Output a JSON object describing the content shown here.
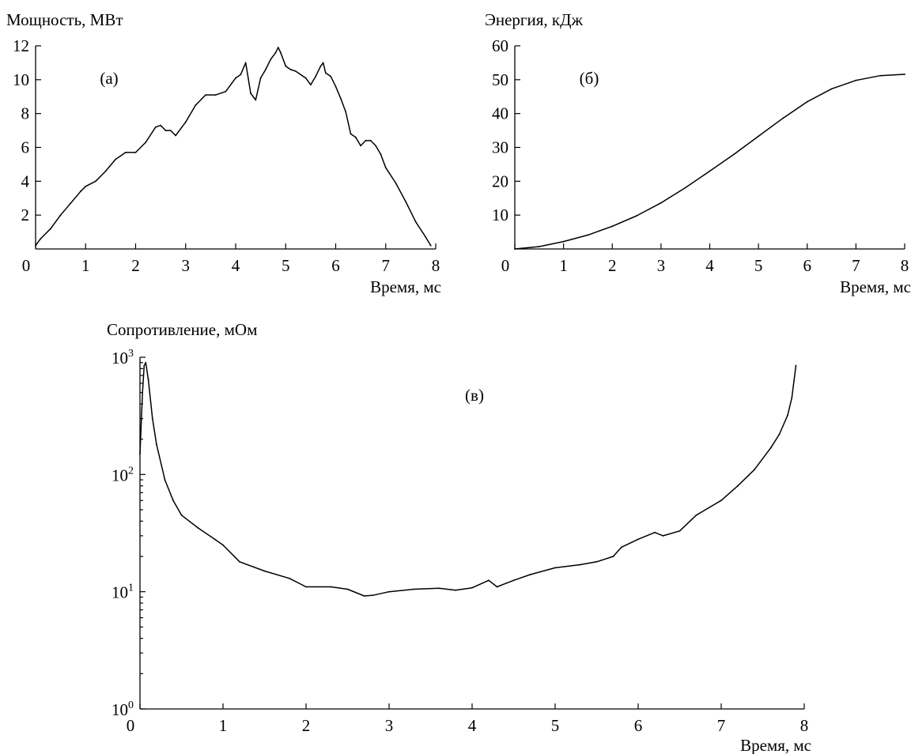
{
  "chart_data": [
    {
      "type": "line",
      "panel_label": "(а)",
      "ylabel": "Мощность, МВт",
      "xlabel": "Время, мс",
      "xlim": [
        0,
        8
      ],
      "ylim": [
        0,
        12
      ],
      "x_ticks": [
        "0",
        "1",
        "2",
        "3",
        "4",
        "5",
        "6",
        "7",
        "8"
      ],
      "y_ticks": [
        "2",
        "4",
        "6",
        "8",
        "10",
        "12"
      ],
      "grid": false,
      "series": [
        {
          "x": [
            0.0,
            0.1,
            0.3,
            0.5,
            0.7,
            0.9,
            1.0,
            1.2,
            1.4,
            1.6,
            1.8,
            2.0,
            2.2,
            2.4,
            2.5,
            2.6,
            2.7,
            2.8,
            3.0,
            3.2,
            3.4,
            3.6,
            3.8,
            4.0,
            4.1,
            4.2,
            4.3,
            4.4,
            4.5,
            4.6,
            4.7,
            4.8,
            4.85,
            4.9,
            5.0,
            5.1,
            5.2,
            5.4,
            5.5,
            5.6,
            5.7,
            5.75,
            5.8,
            5.9,
            6.0,
            6.1,
            6.2,
            6.3,
            6.4,
            6.5,
            6.6,
            6.7,
            6.8,
            6.9,
            7.0,
            7.2,
            7.4,
            7.6,
            7.8,
            7.9
          ],
          "y": [
            0.2,
            0.6,
            1.2,
            2.0,
            2.7,
            3.4,
            3.7,
            4.0,
            4.6,
            5.3,
            5.7,
            5.7,
            6.3,
            7.2,
            7.3,
            7.0,
            7.0,
            6.7,
            7.5,
            8.5,
            9.1,
            9.1,
            9.3,
            10.1,
            10.3,
            11.0,
            9.2,
            8.8,
            10.1,
            10.6,
            11.2,
            11.6,
            11.9,
            11.6,
            10.8,
            10.6,
            10.5,
            10.1,
            9.7,
            10.2,
            10.8,
            11.0,
            10.4,
            10.2,
            9.6,
            8.9,
            8.1,
            6.8,
            6.6,
            6.1,
            6.4,
            6.4,
            6.1,
            5.6,
            4.8,
            3.9,
            2.8,
            1.6,
            0.7,
            0.2
          ]
        }
      ]
    },
    {
      "type": "line",
      "panel_label": "(б)",
      "ylabel": "Энергия, кДж",
      "xlabel": "Время, мс",
      "xlim": [
        0,
        8
      ],
      "ylim": [
        0,
        60
      ],
      "x_ticks": [
        "0",
        "1",
        "2",
        "3",
        "4",
        "5",
        "6",
        "7",
        "8"
      ],
      "y_ticks": [
        "10",
        "20",
        "30",
        "40",
        "50",
        "60"
      ],
      "grid": false,
      "series": [
        {
          "x": [
            0.0,
            0.5,
            1.0,
            1.5,
            2.0,
            2.5,
            3.0,
            3.5,
            4.0,
            4.5,
            5.0,
            5.5,
            6.0,
            6.5,
            7.0,
            7.5,
            8.0
          ],
          "y": [
            0.0,
            0.7,
            2.2,
            4.1,
            6.7,
            9.8,
            13.6,
            18.1,
            23.0,
            28.0,
            33.3,
            38.6,
            43.5,
            47.3,
            49.8,
            51.2,
            51.6
          ]
        }
      ]
    },
    {
      "type": "line",
      "panel_label": "(в)",
      "ylabel": "Сопротивление, мОм",
      "xlabel": "Время, мс",
      "xlim": [
        0,
        8
      ],
      "ylim": [
        1,
        1000
      ],
      "y_scale": "log",
      "x_ticks": [
        "0",
        "1",
        "2",
        "3",
        "4",
        "5",
        "6",
        "7",
        "8"
      ],
      "y_ticks": [
        {
          "base": "10",
          "exp": "0"
        },
        {
          "base": "10",
          "exp": "1"
        },
        {
          "base": "10",
          "exp": "2"
        },
        {
          "base": "10",
          "exp": "3"
        }
      ],
      "grid": false,
      "series": [
        {
          "x": [
            0.0,
            0.03,
            0.05,
            0.07,
            0.1,
            0.15,
            0.2,
            0.3,
            0.4,
            0.5,
            0.7,
            0.9,
            1.0,
            1.2,
            1.5,
            1.8,
            2.0,
            2.3,
            2.5,
            2.7,
            2.8,
            3.0,
            3.3,
            3.6,
            3.8,
            4.0,
            4.2,
            4.3,
            4.5,
            4.7,
            5.0,
            5.3,
            5.5,
            5.7,
            5.8,
            6.0,
            6.2,
            6.3,
            6.5,
            6.7,
            7.0,
            7.2,
            7.4,
            7.6,
            7.7,
            7.8,
            7.85,
            7.9
          ],
          "y": [
            150,
            500,
            850,
            900,
            650,
            300,
            180,
            90,
            60,
            45,
            35,
            28,
            25,
            18,
            15,
            13,
            11,
            11,
            10.5,
            9.2,
            9.3,
            10,
            10.5,
            10.7,
            10.3,
            10.8,
            12.5,
            11.0,
            12.5,
            14,
            16,
            17,
            18,
            20,
            24,
            28,
            32,
            30,
            33,
            45,
            60,
            80,
            110,
            170,
            220,
            320,
            450,
            850
          ]
        }
      ]
    }
  ]
}
